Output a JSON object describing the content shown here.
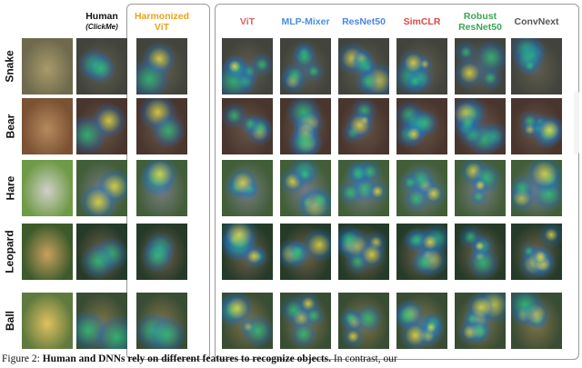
{
  "columns": [
    {
      "label": "",
      "sub": "",
      "color": "#111111"
    },
    {
      "label": "Human",
      "sub": "(ClickMe)",
      "color": "#111111"
    },
    {
      "label": "Harmonized ViT",
      "sub": "",
      "color": "#e8a317"
    },
    {
      "label": "ViT",
      "sub": "",
      "color": "#e06060"
    },
    {
      "label": "MLP-Mixer",
      "sub": "",
      "color": "#4a90d9"
    },
    {
      "label": "ResNet50",
      "sub": "",
      "color": "#4a86e8"
    },
    {
      "label": "SimCLR",
      "sub": "",
      "color": "#e04545"
    },
    {
      "label": "Robust ResNet50",
      "sub": "",
      "color": "#3aa655"
    },
    {
      "label": "ConvNext",
      "sub": "",
      "color": "#555555"
    }
  ],
  "rows": [
    {
      "label": "Snake",
      "bg": "#6f6a4e",
      "accent": "#a89a6a"
    },
    {
      "label": "Bear",
      "bg": "#7b5234",
      "accent": "#b58a5e"
    },
    {
      "label": "Hare",
      "bg": "#6f9a46",
      "accent": "#d0d0c8"
    },
    {
      "label": "Leopard",
      "bg": "#3c5a2a",
      "accent": "#c8a060"
    },
    {
      "label": "Ball",
      "bg": "#5f7a3e",
      "accent": "#e0c060"
    }
  ],
  "caption": {
    "prefix": "Figure 2:",
    "bold": "Human and DNNs rely on different features to recognize objects.",
    "rest": " In contrast, our"
  },
  "colors": {
    "heat_low": "#1f6fbf",
    "heat_mid": "#2fc47a",
    "heat_high": "#f0e040",
    "panel_border": "#9a9a9a"
  }
}
